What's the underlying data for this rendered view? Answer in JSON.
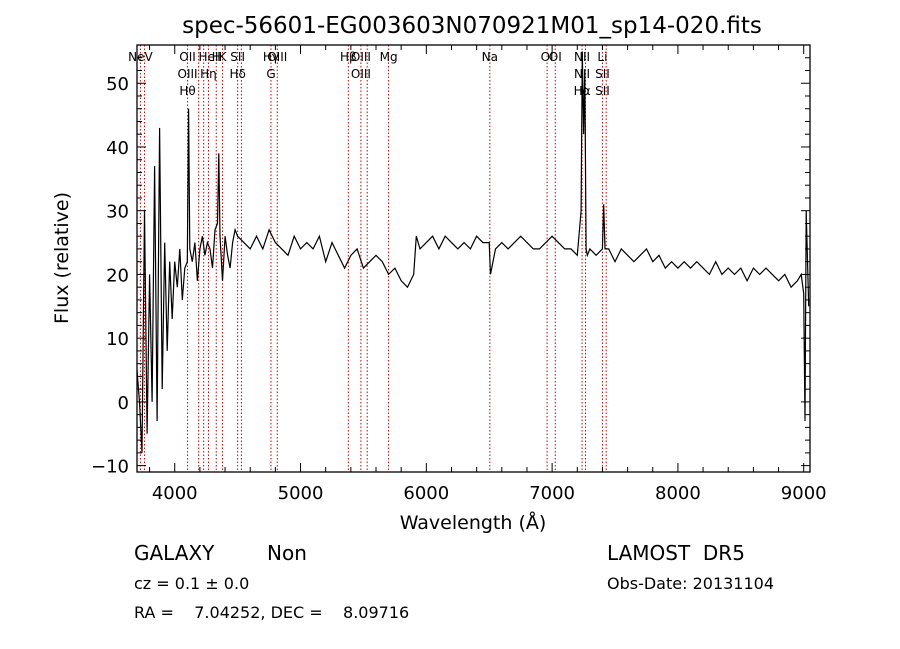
{
  "chart_data": {
    "type": "line",
    "title": "spec-56601-EG003603N070921M01_sp14-020.fits",
    "xlabel": "Wavelength (Å)",
    "ylabel": "Flux (relative)",
    "xlim": [
      3700,
      9050
    ],
    "ylim": [
      -11,
      56
    ],
    "xticks": [
      4000,
      5000,
      6000,
      7000,
      8000,
      9000
    ],
    "yticks": [
      -10,
      0,
      10,
      20,
      30,
      40,
      50
    ],
    "grid": false,
    "line_color": "#000000",
    "marker_color": "#cc0000",
    "series": [
      {
        "x": [
          3700,
          3720,
          3740,
          3760,
          3780,
          3800,
          3820,
          3840,
          3860,
          3880,
          3900,
          3920,
          3940,
          3960,
          3980,
          4000,
          4020,
          4040,
          4060,
          4080,
          4100,
          4110,
          4120,
          4140,
          4160,
          4180,
          4200,
          4220,
          4240,
          4260,
          4280,
          4300,
          4320,
          4340,
          4350,
          4360,
          4380,
          4400,
          4420,
          4440,
          4460,
          4480,
          4500,
          4550,
          4600,
          4650,
          4700,
          4750,
          4800,
          4850,
          4900,
          4950,
          5000,
          5050,
          5100,
          5150,
          5200,
          5250,
          5300,
          5350,
          5400,
          5450,
          5500,
          5550,
          5600,
          5650,
          5700,
          5750,
          5800,
          5850,
          5900,
          5920,
          5950,
          6000,
          6050,
          6100,
          6150,
          6200,
          6250,
          6300,
          6350,
          6400,
          6450,
          6500,
          6510,
          6550,
          6600,
          6650,
          6700,
          6750,
          6800,
          6850,
          6900,
          6950,
          7000,
          7050,
          7100,
          7150,
          7200,
          7230,
          7240,
          7250,
          7260,
          7270,
          7280,
          7300,
          7350,
          7400,
          7410,
          7420,
          7450,
          7500,
          7550,
          7600,
          7650,
          7700,
          7750,
          7800,
          7850,
          7900,
          7950,
          8000,
          8050,
          8100,
          8150,
          8200,
          8250,
          8300,
          8350,
          8400,
          8450,
          8500,
          8550,
          8600,
          8650,
          8700,
          8750,
          8800,
          8850,
          8900,
          8950,
          8980,
          9000,
          9010,
          9020,
          9040
        ],
        "y": [
          5,
          0,
          -8,
          30,
          -5,
          20,
          0,
          37,
          -3,
          43,
          2,
          25,
          8,
          22,
          13,
          22,
          18,
          24,
          16,
          21,
          22,
          46,
          24,
          22,
          25,
          19,
          24,
          26,
          23,
          25,
          24,
          21,
          27,
          28,
          39,
          26,
          19,
          26,
          23,
          21,
          25,
          27,
          26,
          25,
          24,
          26,
          24,
          27,
          25,
          24,
          23,
          26,
          24,
          25,
          24,
          26,
          22,
          25,
          23,
          21,
          23,
          24,
          21,
          22,
          23,
          22,
          20,
          21,
          19,
          18,
          20,
          26,
          24,
          25,
          26,
          24,
          26,
          25,
          24,
          25,
          24,
          26,
          25,
          25,
          20,
          24,
          25,
          24,
          25,
          26,
          25,
          24,
          24,
          25,
          26,
          25,
          24,
          24,
          23,
          30,
          55,
          42,
          52,
          24,
          23,
          24,
          23,
          24,
          31,
          24,
          24,
          22,
          24,
          23,
          22,
          23,
          24,
          22,
          23,
          21,
          22,
          21,
          22,
          21,
          22,
          21,
          20,
          22,
          20,
          21,
          20,
          21,
          19,
          21,
          20,
          21,
          20,
          19,
          20,
          18,
          19,
          20,
          17,
          -3,
          30,
          15
        ]
      }
    ],
    "line_markers": [
      {
        "x": 3727,
        "labels": [
          "NeV"
        ]
      },
      {
        "x": 3760,
        "labels": []
      },
      {
        "x": 4102,
        "labels": [
          "OII",
          "OIII",
          "Hθ"
        ]
      },
      {
        "x": 4190,
        "labels": []
      },
      {
        "x": 4230,
        "labels": []
      },
      {
        "x": 4268,
        "labels": [
          "HeI",
          "Hη"
        ]
      },
      {
        "x": 4330,
        "labels": [
          "H"
        ]
      },
      {
        "x": 4380,
        "labels": [
          "K"
        ]
      },
      {
        "x": 4500,
        "labels": [
          "SII",
          "Hδ"
        ]
      },
      {
        "x": 4530,
        "labels": []
      },
      {
        "x": 4765,
        "labels": [
          "Hγ",
          "G"
        ]
      },
      {
        "x": 4815,
        "labels": [
          "OIII"
        ]
      },
      {
        "x": 5380,
        "labels": [
          "Hβ"
        ]
      },
      {
        "x": 5480,
        "labels": [
          "OIII",
          "OIII"
        ]
      },
      {
        "x": 5530,
        "labels": []
      },
      {
        "x": 5700,
        "labels": [
          "Mg"
        ]
      },
      {
        "x": 6505,
        "labels": [
          "Na"
        ]
      },
      {
        "x": 6960,
        "labels": [
          "OI"
        ]
      },
      {
        "x": 7025,
        "labels": [
          "OI"
        ]
      },
      {
        "x": 7238,
        "labels": [
          "NII",
          "NII",
          "Hα"
        ]
      },
      {
        "x": 7265,
        "labels": []
      },
      {
        "x": 7400,
        "labels": [
          "Li",
          "SII",
          "SII"
        ]
      },
      {
        "x": 7430,
        "labels": []
      }
    ]
  },
  "info": {
    "class": "GALAXY",
    "subclass": "Non",
    "survey": "LAMOST  DR5",
    "cz": "cz = 0.1 ± 0.0",
    "obs_date": "Obs-Date: 20131104",
    "radec": "RA =    7.04252, DEC =    8.09716"
  }
}
